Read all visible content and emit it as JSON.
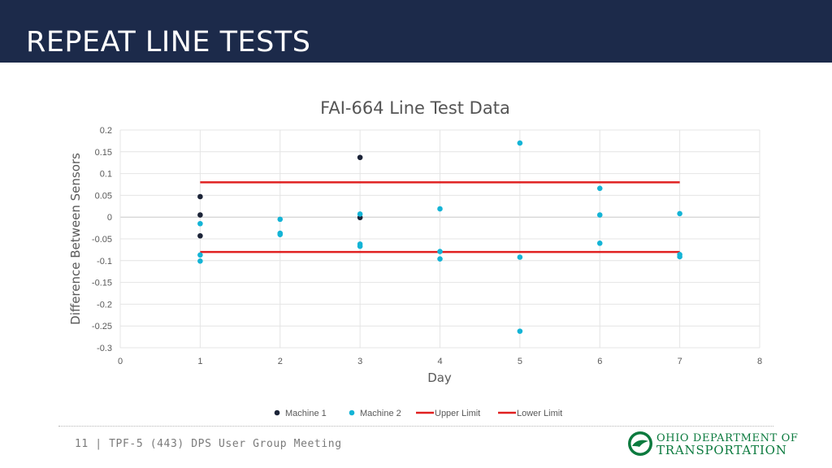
{
  "header": {
    "title": "REPEAT LINE TESTS"
  },
  "footer": {
    "text": "11 | TPF-5 (443) DPS User Group Meeting"
  },
  "logo": {
    "line1": "OHIO DEPARTMENT OF",
    "line2": "TRANSPORTATION",
    "color": "#0b7a3e"
  },
  "chart_data": {
    "type": "scatter",
    "title": "FAI-664 Line Test Data",
    "xlabel": "Day",
    "ylabel": "Difference Between Sensors",
    "xlim": [
      0,
      8
    ],
    "ylim": [
      -0.3,
      0.2
    ],
    "xticks": [
      "0",
      "1",
      "2",
      "3",
      "4",
      "5",
      "6",
      "7",
      "8"
    ],
    "yticks": [
      "0.2",
      "0.15",
      "0.1",
      "0.05",
      "0",
      "-0.05",
      "-0.1",
      "-0.15",
      "-0.2",
      "-0.25",
      "-0.3"
    ],
    "grid": true,
    "legend_position": "bottom",
    "series": [
      {
        "name": "Machine 1",
        "kind": "marker",
        "color": "#1c2438",
        "points": [
          [
            1,
            0.047
          ],
          [
            1,
            0.005
          ],
          [
            1,
            -0.043
          ],
          [
            3,
            0.137
          ],
          [
            3,
            -0.001
          ]
        ]
      },
      {
        "name": "Machine 2",
        "kind": "marker",
        "color": "#14b4d6",
        "points": [
          [
            1,
            -0.015
          ],
          [
            1,
            -0.087
          ],
          [
            1,
            -0.101
          ],
          [
            2,
            -0.005
          ],
          [
            2,
            -0.037
          ],
          [
            2,
            -0.04
          ],
          [
            3,
            0.007
          ],
          [
            3,
            -0.062
          ],
          [
            3,
            -0.067
          ],
          [
            4,
            0.019
          ],
          [
            4,
            -0.079
          ],
          [
            4,
            -0.096
          ],
          [
            5,
            0.17
          ],
          [
            5,
            -0.092
          ],
          [
            5,
            -0.262
          ],
          [
            6,
            0.066
          ],
          [
            6,
            0.005
          ],
          [
            6,
            -0.06
          ],
          [
            7,
            0.008
          ],
          [
            7,
            -0.086
          ],
          [
            7,
            -0.091
          ]
        ]
      },
      {
        "name": "Upper Limit",
        "kind": "line",
        "color": "#e02020",
        "points": [
          [
            1,
            0.08
          ],
          [
            7,
            0.08
          ]
        ]
      },
      {
        "name": "Lower Limit",
        "kind": "line",
        "color": "#e02020",
        "points": [
          [
            1,
            -0.08
          ],
          [
            7,
            -0.08
          ]
        ]
      }
    ]
  }
}
